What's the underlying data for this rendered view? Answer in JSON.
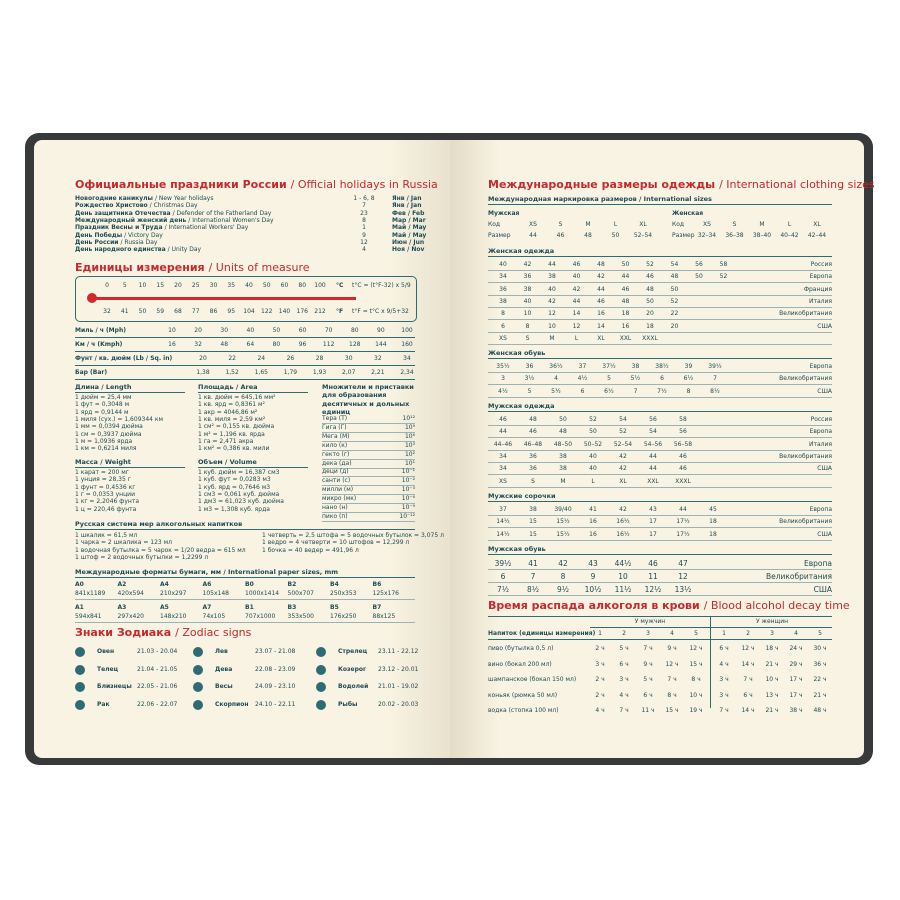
{
  "left_page": {
    "holidays": {
      "title_ru": "Официальные праздники России",
      "title_en": "/ Official holidays in Russia",
      "rows": [
        [
          "Новогодние каникулы",
          "/ New Year holidays",
          "1 - 6, 8",
          "Янв / Jan"
        ],
        [
          "Рождество Христово",
          "/ Christmas Day",
          "7",
          "Янв / Jan"
        ],
        [
          "День защитника Отечества",
          "/ Defender of the Fatherland Day",
          "23",
          "Фев / Feb"
        ],
        [
          "Международный женский день",
          "/ International Women's Day",
          "8",
          "Мар / Mar"
        ],
        [
          "Праздник Весны и Труда",
          "/ International Workers' Day",
          "1",
          "Май / May"
        ],
        [
          "День Победы",
          "/ Victory Day",
          "9",
          "Май / May"
        ],
        [
          "День России",
          "/ Russia Day",
          "12",
          "Июн / Jun"
        ],
        [
          "День народного единства",
          "/ Unity Day",
          "4",
          "Ноя / Nov"
        ]
      ]
    },
    "units": {
      "title_ru": "Единицы измерения",
      "title_en": "/ Units of measure",
      "celsius": [
        0,
        5,
        10,
        15,
        20,
        25,
        30,
        35,
        40,
        50,
        60,
        80,
        100
      ],
      "fahrenheit": [
        32,
        41,
        50,
        59,
        68,
        77,
        86,
        95,
        104,
        122,
        140,
        176,
        212
      ],
      "c_label": "°C",
      "f_label": "°F",
      "c_formula": "t°C = (t°F-32) x 5/9",
      "f_formula": "t°F = t°C x 9/5+32",
      "conversions": [
        {
          "label": "Миль / ч (Mph)",
          "values": [
            10,
            20,
            30,
            40,
            50,
            60,
            70,
            80,
            90,
            100
          ]
        },
        {
          "label": "Км / ч (Kmph)",
          "values": [
            16,
            32,
            48,
            64,
            80,
            96,
            112,
            128,
            144,
            160
          ]
        },
        {
          "label": "Фунт / кв. дюйм (Lb / Sq. in)",
          "values": [
            20,
            22,
            24,
            26,
            28,
            30,
            32,
            34
          ]
        },
        {
          "label": "Бар (Bar)",
          "values": [
            "1,38",
            "1,52",
            "1,65",
            "1,79",
            "1,93",
            "2,07",
            "2,21",
            "2,34"
          ]
        }
      ],
      "length": {
        "title": "Длина / Length",
        "items": [
          "1 дюйм = 25,4 мм",
          "1 фут = 0,3048 м",
          "1 ярд = 0,9144 м",
          "1 миля (сух.) = 1,609344 км",
          "1 мм = 0,0394 дюйма",
          "1 см = 0,3937 дюйма",
          "1 м = 1,0936 ярда",
          "1 км = 0,6214 миля"
        ]
      },
      "area": {
        "title": "Площадь / Area",
        "items": [
          "1 кв. дюйм = 645,16 мм²",
          "1 кв. ярд = 0,8361 м²",
          "1 акр = 4046,86 м²",
          "1 кв. миля = 2,59 км²",
          "1 см² = 0,155 кв. дюйма",
          "1 м² = 1,196 кв. ярда",
          "1 га = 2,471 акра",
          "1 км² = 0,386 кв. мили"
        ]
      },
      "mass": {
        "title": "Масса / Weight",
        "items": [
          "1 карат = 200 мг",
          "1 унция = 28,35 г",
          "1 фунт = 0,4536 кг",
          "1 г = 0,0353 унции",
          "1 кг = 2,2046 фунта",
          "1 ц = 220,46 фунта"
        ]
      },
      "volume": {
        "title": "Объем / Volume",
        "items": [
          "1 куб. дюйм = 16,387 см3",
          "1 куб. фут = 0,0283 м3",
          "1 куб. ярд = 0,7646 м3",
          "1 см3 = 0,061 куб. дюйма",
          "1 дм3 = 61,023 куб. дюйма",
          "1 м3 = 1,308 куб. ярда"
        ]
      },
      "prefixes": {
        "title": "Множители и приставки для образования десятичных и дольных единиц",
        "items": [
          [
            "Тера (Т)",
            "10¹²"
          ],
          [
            "Гига (Г)",
            "10⁹"
          ],
          [
            "Мега (М)",
            "10⁶"
          ],
          [
            "кило (к)",
            "10³"
          ],
          [
            "гекто (г)",
            "10²"
          ],
          [
            "дека (да)",
            "10¹"
          ],
          [
            "деци (д)",
            "10⁻¹"
          ],
          [
            "санти (с)",
            "10⁻²"
          ],
          [
            "милли (м)",
            "10⁻³"
          ],
          [
            "микро (мк)",
            "10⁻⁶"
          ],
          [
            "нано (н)",
            "10⁻⁹"
          ],
          [
            "пико (п)",
            "10⁻¹²"
          ]
        ]
      },
      "alcohol": {
        "title": "Русская система мер алкогольных напитков",
        "left": [
          "1 шкалик = 61,5 мл",
          "1 чарка = 2 шкалика = 123 мл",
          "1 водочная бутылка = 5 чарок = 1/20 ведра = 615 мл",
          "1 штоф = 2 водочных бутылки = 1,2299 л"
        ],
        "right": [
          "1 четверть = 2,5 штофа = 5 водочных бутылок = 3,075 л",
          "1 ведро = 4 четверти = 10 штофов = 12,299 л",
          "1 бочка = 40 ведер = 491,96 л"
        ]
      },
      "paper": {
        "title": "Международные форматы бумаги, мм / International paper sizes, mm",
        "rows": [
          [
            [
              "A0",
              "841x1189"
            ],
            [
              "A2",
              "420x594"
            ],
            [
              "A4",
              "210x297"
            ],
            [
              "A6",
              "105x148"
            ],
            [
              "B0",
              "1000x1414"
            ],
            [
              "B2",
              "500x707"
            ],
            [
              "B4",
              "250x353"
            ],
            [
              "B6",
              "125x176"
            ]
          ],
          [
            [
              "A1",
              "594x841"
            ],
            [
              "A3",
              "297x420"
            ],
            [
              "A5",
              "148x210"
            ],
            [
              "A7",
              "74x105"
            ],
            [
              "B1",
              "707x1000"
            ],
            [
              "B3",
              "353x500"
            ],
            [
              "B5",
              "176x250"
            ],
            [
              "B7",
              "88x125"
            ]
          ]
        ]
      }
    },
    "zodiac": {
      "title_ru": "Знаки Зодиака",
      "title_en": "/ Zodiac signs",
      "signs": [
        [
          "Овен",
          "21.03 - 20.04"
        ],
        [
          "Телец",
          "21.04 - 21.05"
        ],
        [
          "Близнецы",
          "22.05 - 21.06"
        ],
        [
          "Рак",
          "22.06 - 22.07"
        ],
        [
          "Лев",
          "23.07 - 21.08"
        ],
        [
          "Дева",
          "22.08 - 23.09"
        ],
        [
          "Весы",
          "24.09 - 23.10"
        ],
        [
          "Скорпион",
          "24.10 - 22.11"
        ],
        [
          "Стрелец",
          "23.11 - 22.12"
        ],
        [
          "Козерог",
          "23.12 - 20.01"
        ],
        [
          "Водолей",
          "21.01 - 19.02"
        ],
        [
          "Рыбы",
          "20.02 - 20.03"
        ]
      ]
    }
  },
  "right_page": {
    "clothing": {
      "title_ru": "Международные размеры одежды",
      "title_en": "/ International clothing sizes",
      "subtitle": "Международная маркировка размеров / International sizes",
      "header": {
        "men_label": "Мужская",
        "women_label": "Женская",
        "code_label": "Код",
        "size_label": "Размер",
        "men_codes": [
          "XS",
          "S",
          "M",
          "L",
          "XL"
        ],
        "men_sizes": [
          "44",
          "46",
          "48",
          "50",
          "52–54"
        ],
        "women_codes": [
          "XS",
          "S",
          "M",
          "L",
          "XL"
        ],
        "women_sizes": [
          "32–34",
          "36–38",
          "38–40",
          "40–42",
          "42–44"
        ]
      },
      "sections": [
        {
          "title": "Женская одежда",
          "rows": [
            {
              "values": [
                40,
                42,
                44,
                46,
                48,
                50,
                52,
                54,
                56,
                58
              ],
              "country": "Россия"
            },
            {
              "values": [
                34,
                36,
                38,
                40,
                42,
                44,
                46,
                48,
                50,
                52
              ],
              "country": "Европа"
            },
            {
              "values": [
                36,
                38,
                40,
                42,
                44,
                46,
                48,
                50
              ],
              "country": "Франция"
            },
            {
              "values": [
                38,
                40,
                42,
                44,
                46,
                48,
                50,
                52
              ],
              "country": "Италия"
            },
            {
              "values": [
                8,
                10,
                12,
                14,
                16,
                18,
                20,
                22
              ],
              "country": "Великобритания"
            },
            {
              "values": [
                6,
                8,
                10,
                12,
                14,
                16,
                18,
                20
              ],
              "country": "США"
            },
            {
              "values": [
                "XS",
                "S",
                "M",
                "L",
                "XL",
                "XXL",
                "XXXL"
              ]
            }
          ]
        },
        {
          "title": "Женская обувь",
          "rows": [
            {
              "values": [
                "35½",
                "36",
                "36½",
                "37",
                "37½",
                "38",
                "38½",
                "39",
                "39½"
              ],
              "country": "Европа"
            },
            {
              "values": [
                "3",
                "3½",
                "4",
                "4½",
                "5",
                "5½",
                "6",
                "6½",
                "7"
              ],
              "country": "Великобритания"
            },
            {
              "values": [
                "4½",
                "5",
                "5½",
                "6",
                "6½",
                "7",
                "7½",
                "8",
                "8½"
              ],
              "country": "США"
            }
          ]
        },
        {
          "title": "Мужская одежда",
          "rows": [
            {
              "values": [
                46,
                48,
                50,
                52,
                54,
                56,
                58
              ],
              "country": "Россия"
            },
            {
              "values": [
                44,
                46,
                48,
                50,
                52,
                54,
                56
              ],
              "country": "Европа"
            },
            {
              "values": [
                "44–46",
                "46–48",
                "48–50",
                "50–52",
                "52–54",
                "54–56",
                "56–58"
              ],
              "country": "Италия"
            },
            {
              "values": [
                34,
                36,
                38,
                40,
                42,
                44,
                46
              ],
              "country": "Великобритания"
            },
            {
              "values": [
                34,
                36,
                38,
                40,
                42,
                44,
                46
              ],
              "country": "США"
            },
            {
              "values": [
                "XS",
                "S",
                "M",
                "L",
                "XL",
                "XXL",
                "XXXL"
              ]
            }
          ]
        },
        {
          "title": "Мужские сорочки",
          "rows": [
            {
              "values": [
                "37",
                "38",
                "39/40",
                "41",
                "42",
                "43",
                "44",
                "45"
              ],
              "country": "Европа"
            },
            {
              "values": [
                "14½",
                "15",
                "15½",
                "16",
                "16½",
                "17",
                "17½",
                "18"
              ],
              "country": "Великобритания"
            },
            {
              "values": [
                "14½",
                "15",
                "15½",
                "16",
                "16½",
                "17",
                "17½",
                "18"
              ],
              "country": "США"
            }
          ]
        },
        {
          "title": "Мужская обувь",
          "rows": [
            {
              "values": [
                "39½",
                "41",
                "42",
                "43",
                "44½",
                "46",
                "47"
              ],
              "country": "Европа"
            },
            {
              "values": [
                "6",
                "7",
                "8",
                "9",
                "10",
                "11",
                "12"
              ],
              "country": "Великобритания"
            },
            {
              "values": [
                "7½",
                "8½",
                "9½",
                "10½",
                "11½",
                "12½",
                "13½"
              ],
              "country": "США"
            }
          ]
        }
      ]
    },
    "alcohol": {
      "title_ru": "Время распада алкоголя в крови",
      "title_en": "/ Blood alcohol decay time",
      "men_label": "У мужчин",
      "women_label": "У женщин",
      "drink_label": "Напиток (единицы измерения)",
      "columns": [
        1,
        2,
        3,
        4,
        5
      ],
      "rows": [
        {
          "drink": "пиво (бутылка 0,5 л)",
          "men": [
            "2 ч",
            "5 ч",
            "7 ч",
            "9 ч",
            "12 ч"
          ],
          "women": [
            "6 ч",
            "12 ч",
            "18 ч",
            "24 ч",
            "30 ч"
          ]
        },
        {
          "drink": "вино (бокал 200 мл)",
          "men": [
            "3 ч",
            "6 ч",
            "9 ч",
            "12 ч",
            "15 ч"
          ],
          "women": [
            "4 ч",
            "14 ч",
            "21 ч",
            "29 ч",
            "36 ч"
          ]
        },
        {
          "drink": "шампанское (бокал 150 мл)",
          "men": [
            "2 ч",
            "3 ч",
            "5 ч",
            "7 ч",
            "8 ч"
          ],
          "women": [
            "3 ч",
            "7 ч",
            "10 ч",
            "17 ч",
            "22 ч"
          ]
        },
        {
          "drink": "коньяк (рюмка 50 мл)",
          "men": [
            "2 ч",
            "4 ч",
            "6 ч",
            "8 ч",
            "10 ч"
          ],
          "women": [
            "3 ч",
            "6 ч",
            "13 ч",
            "17 ч",
            "21 ч"
          ]
        },
        {
          "drink": "водка (стопка 100 мл)",
          "men": [
            "4 ч",
            "7 ч",
            "11 ч",
            "15 ч",
            "19 ч"
          ],
          "women": [
            "7 ч",
            "14 ч",
            "21 ч",
            "38 ч",
            "48 ч"
          ]
        }
      ]
    }
  }
}
